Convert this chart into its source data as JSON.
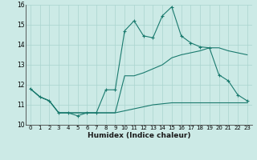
{
  "xlabel": "Humidex (Indice chaleur)",
  "x_values": [
    0,
    1,
    2,
    3,
    4,
    5,
    6,
    7,
    8,
    9,
    10,
    11,
    12,
    13,
    14,
    15,
    16,
    17,
    18,
    19,
    20,
    21,
    22,
    23
  ],
  "line_main_y": [
    11.8,
    11.4,
    11.2,
    10.6,
    10.6,
    10.45,
    10.6,
    10.6,
    11.75,
    11.75,
    14.7,
    15.2,
    14.45,
    14.35,
    15.45,
    15.9,
    14.45,
    14.1,
    13.9,
    13.85,
    12.5,
    12.2,
    11.5,
    11.2
  ],
  "line_upper_y": [
    11.8,
    11.4,
    11.2,
    10.6,
    10.6,
    10.6,
    10.6,
    10.6,
    10.6,
    10.6,
    12.45,
    12.45,
    12.6,
    12.8,
    13.0,
    13.35,
    13.5,
    13.6,
    13.7,
    13.85,
    13.85,
    13.7,
    13.6,
    13.5
  ],
  "line_lower_y": [
    11.8,
    11.4,
    11.2,
    10.6,
    10.6,
    10.6,
    10.6,
    10.6,
    10.6,
    10.6,
    10.7,
    10.8,
    10.9,
    11.0,
    11.05,
    11.1,
    11.1,
    11.1,
    11.1,
    11.1,
    11.1,
    11.1,
    11.1,
    11.1
  ],
  "line_color": "#1a7a6e",
  "bg_color": "#cceae6",
  "grid_color": "#aad4cf",
  "ylim": [
    10,
    16
  ],
  "yticks": [
    10,
    11,
    12,
    13,
    14,
    15,
    16
  ],
  "xlim": [
    -0.5,
    23.5
  ]
}
